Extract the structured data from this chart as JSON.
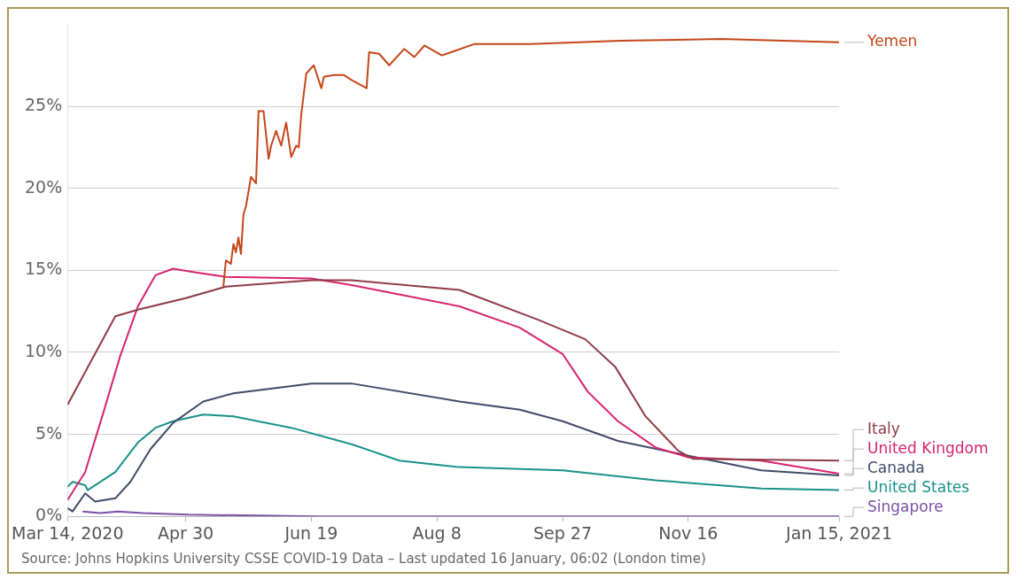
{
  "chart_data": {
    "type": "line",
    "xlim": [
      "2020-03-14",
      "2021-01-15"
    ],
    "xticks": [
      {
        "value": "2020-03-14",
        "label": "Mar 14, 2020"
      },
      {
        "value": "2020-04-30",
        "label": "Apr 30"
      },
      {
        "value": "2020-06-19",
        "label": "Jun 19"
      },
      {
        "value": "2020-08-08",
        "label": "Aug 8"
      },
      {
        "value": "2020-09-27",
        "label": "Sep 27"
      },
      {
        "value": "2020-11-16",
        "label": "Nov 16"
      },
      {
        "value": "2021-01-15",
        "label": "Jan 15, 2021"
      }
    ],
    "ylim": [
      0,
      30
    ],
    "yticks": [
      {
        "value": 0,
        "label": "0%"
      },
      {
        "value": 5,
        "label": "5%"
      },
      {
        "value": 10,
        "label": "10%"
      },
      {
        "value": 15,
        "label": "15%"
      },
      {
        "value": 20,
        "label": "20%"
      },
      {
        "value": 25,
        "label": "25%"
      }
    ],
    "grid": "y",
    "legend": false,
    "marker": "none",
    "line_style": "solid",
    "annotations": [
      "Source: Johns Hopkins University CSSE COVID-19 Data – Last updated 16 January, 06:02 (London time)"
    ],
    "series": [
      {
        "name": "Yemen",
        "color": "#c4461a",
        "x": [
          "2020-05-15",
          "2020-05-16",
          "2020-05-18",
          "2020-05-19",
          "2020-05-20",
          "2020-05-21",
          "2020-05-22",
          "2020-05-23",
          "2020-05-24",
          "2020-05-26",
          "2020-05-28",
          "2020-05-29",
          "2020-05-31",
          "2020-06-02",
          "2020-06-03",
          "2020-06-05",
          "2020-06-07",
          "2020-06-09",
          "2020-06-11",
          "2020-06-13",
          "2020-06-14",
          "2020-06-15",
          "2020-06-17",
          "2020-06-20",
          "2020-06-23",
          "2020-06-24",
          "2020-06-28",
          "2020-07-02",
          "2020-07-05",
          "2020-07-11",
          "2020-07-12",
          "2020-07-16",
          "2020-07-20",
          "2020-07-26",
          "2020-07-30",
          "2020-08-03",
          "2020-08-10",
          "2020-08-23",
          "2020-09-14",
          "2020-10-20",
          "2020-11-29",
          "2021-01-15"
        ],
        "values": [
          14.0,
          15.6,
          15.4,
          16.6,
          16.1,
          17.0,
          16.0,
          18.4,
          18.9,
          20.7,
          20.3,
          24.7,
          24.7,
          21.8,
          22.6,
          23.5,
          22.6,
          24.0,
          21.9,
          22.6,
          22.5,
          24.5,
          27.0,
          27.5,
          26.1,
          26.8,
          26.9,
          26.9,
          26.6,
          26.1,
          28.3,
          28.2,
          27.5,
          28.5,
          28.0,
          28.7,
          28.1,
          28.8,
          28.8,
          29.0,
          29.1,
          28.9
        ]
      },
      {
        "name": "Italy",
        "color": "#8e3b46",
        "x": [
          "2020-03-14",
          "2020-03-21",
          "2020-04-02",
          "2020-04-11",
          "2020-04-30",
          "2020-05-16",
          "2020-06-19",
          "2020-07-05",
          "2020-08-17",
          "2020-09-17",
          "2020-10-06",
          "2020-10-18",
          "2020-10-30",
          "2020-11-12",
          "2020-11-18",
          "2021-01-15"
        ],
        "values": [
          6.8,
          8.8,
          12.2,
          12.6,
          13.3,
          14.0,
          14.4,
          14.4,
          13.8,
          12.0,
          10.8,
          9.1,
          6.1,
          4.0,
          3.5,
          3.4
        ]
      },
      {
        "name": "United Kingdom",
        "color": "#d6246e",
        "x": [
          "2020-03-14",
          "2020-03-21",
          "2020-03-28",
          "2020-04-04",
          "2020-04-11",
          "2020-04-18",
          "2020-04-25",
          "2020-05-03",
          "2020-05-16",
          "2020-06-19",
          "2020-07-05",
          "2020-08-17",
          "2020-09-10",
          "2020-09-27",
          "2020-10-07",
          "2020-10-19",
          "2020-11-03",
          "2020-11-16",
          "2020-12-15",
          "2021-01-15"
        ],
        "values": [
          1.0,
          2.7,
          6.2,
          9.8,
          12.8,
          14.7,
          15.1,
          14.9,
          14.6,
          14.5,
          14.1,
          12.8,
          11.5,
          9.9,
          7.6,
          5.8,
          4.2,
          3.6,
          3.4,
          2.6
        ]
      },
      {
        "name": "Canada",
        "color": "#404b69",
        "x": [
          "2020-03-14",
          "2020-03-16",
          "2020-03-21",
          "2020-03-25",
          "2020-04-02",
          "2020-04-08",
          "2020-04-16",
          "2020-04-25",
          "2020-05-07",
          "2020-05-19",
          "2020-06-19",
          "2020-07-05",
          "2020-08-17",
          "2020-09-10",
          "2020-09-27",
          "2020-10-19",
          "2020-11-16",
          "2020-12-15",
          "2021-01-15"
        ],
        "values": [
          0.5,
          0.3,
          1.4,
          0.9,
          1.1,
          2.1,
          4.1,
          5.7,
          7.0,
          7.5,
          8.1,
          8.1,
          7.0,
          6.5,
          5.8,
          4.6,
          3.7,
          2.8,
          2.5
        ]
      },
      {
        "name": "United States",
        "color": "#18918a",
        "x": [
          "2020-03-14",
          "2020-03-16",
          "2020-03-21",
          "2020-03-22",
          "2020-04-02",
          "2020-04-11",
          "2020-04-18",
          "2020-04-25",
          "2020-05-07",
          "2020-05-19",
          "2020-06-11",
          "2020-07-05",
          "2020-07-24",
          "2020-08-17",
          "2020-09-27",
          "2020-11-03",
          "2020-12-15",
          "2021-01-15"
        ],
        "values": [
          1.8,
          2.1,
          1.9,
          1.6,
          2.7,
          4.5,
          5.4,
          5.8,
          6.2,
          6.1,
          5.4,
          4.4,
          3.4,
          3.0,
          2.8,
          2.2,
          1.7,
          1.6
        ]
      },
      {
        "name": "Singapore",
        "color": "#7b4fa6",
        "x": [
          "2020-03-20",
          "2020-03-27",
          "2020-04-03",
          "2020-04-13",
          "2020-05-01",
          "2020-06-22",
          "2021-01-15"
        ],
        "values": [
          0.3,
          0.2,
          0.3,
          0.2,
          0.1,
          0.0,
          0.0
        ]
      }
    ]
  }
}
